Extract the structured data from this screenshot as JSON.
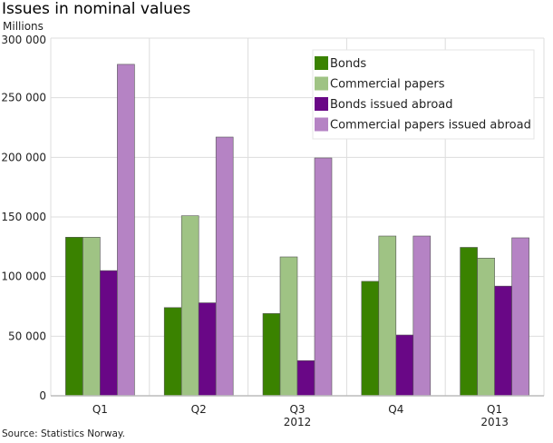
{
  "chart_data": {
    "type": "bar",
    "title": "Issues in nominal values",
    "ylabel": "Millions",
    "source": "Source: Statistics Norway.",
    "categories": [
      "Q1",
      "Q2",
      "Q3",
      "Q4",
      "Q1"
    ],
    "category_groups": [
      {
        "label": "2012"
      },
      {
        "label": "2013"
      }
    ],
    "ylim": [
      0,
      300000
    ],
    "yticks": [
      0,
      50000,
      100000,
      150000,
      200000,
      250000,
      300000
    ],
    "ytick_labels": [
      "0",
      "50 000",
      "100 000",
      "150 000",
      "200 000",
      "250 000",
      "300 000"
    ],
    "grid": true,
    "legend": "top-right",
    "series": [
      {
        "name": "Bonds",
        "color": "#3a8200",
        "values": [
          133000,
          74000,
          69000,
          96000,
          124500
        ]
      },
      {
        "name": "Commercial papers",
        "color": "#9fc384",
        "values": [
          133000,
          151000,
          116500,
          134000,
          115500
        ]
      },
      {
        "name": "Bonds issued abroad",
        "color": "#690786",
        "values": [
          105000,
          78000,
          29500,
          51000,
          92000
        ]
      },
      {
        "name": "Commercial papers issued abroad",
        "color": "#b583c4",
        "values": [
          278000,
          217000,
          199500,
          134000,
          132500
        ]
      }
    ]
  }
}
